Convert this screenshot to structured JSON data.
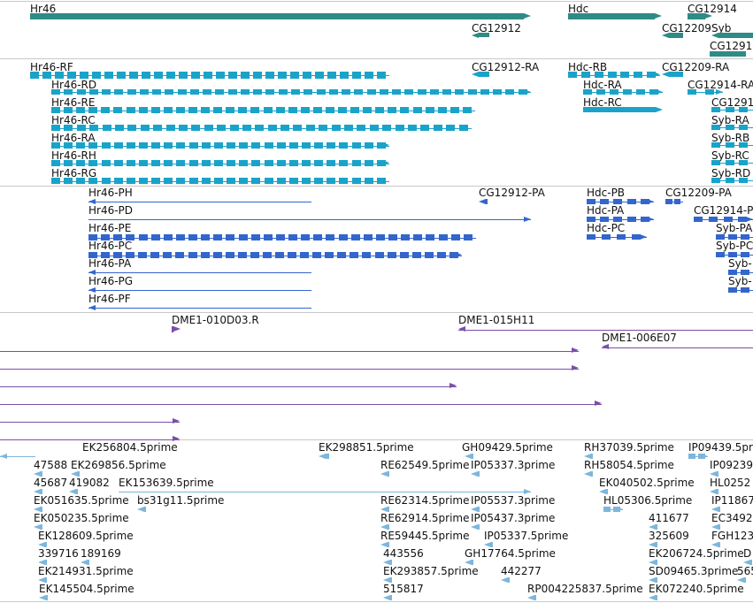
{
  "colors": {
    "gene": "#2e8b85",
    "mrna": "#1aa3c9",
    "cds": "#3366cc",
    "clone": "#7a4fa8",
    "est": "#7db6dc",
    "separator": "#c9c9c9"
  },
  "tracks": [
    {
      "id": "genes",
      "color": "gene",
      "features": [
        {
          "name": "Hr46"
        },
        {
          "name": "CG12912"
        },
        {
          "name": "Hdc"
        },
        {
          "name": "CG12914"
        },
        {
          "name": "CG12209"
        },
        {
          "name": "Syb"
        },
        {
          "name": "CG1291"
        }
      ]
    },
    {
      "id": "transcripts",
      "color": "mrna",
      "features": [
        {
          "name": "Hr46-RF"
        },
        {
          "name": "CG12912-RA"
        },
        {
          "name": "Hdc-RB"
        },
        {
          "name": "CG12209-RA"
        },
        {
          "name": "Hr46-RD"
        },
        {
          "name": "Hdc-RA"
        },
        {
          "name": "CG12914-RA"
        },
        {
          "name": "Hr46-RE"
        },
        {
          "name": "Hdc-RC"
        },
        {
          "name": "CG1291"
        },
        {
          "name": "Hr46-RC"
        },
        {
          "name": "Syb-RA"
        },
        {
          "name": "Hr46-RA"
        },
        {
          "name": "Syb-RB"
        },
        {
          "name": "Hr46-RH"
        },
        {
          "name": "Syb-RC"
        },
        {
          "name": "Hr46-RG"
        },
        {
          "name": "Syb-RD"
        }
      ]
    },
    {
      "id": "proteins",
      "color": "cds",
      "features": [
        {
          "name": "Hr46-PH"
        },
        {
          "name": "CG12912-PA"
        },
        {
          "name": "Hdc-PB"
        },
        {
          "name": "CG12209-PA"
        },
        {
          "name": "Hr46-PD"
        },
        {
          "name": "Hdc-PA"
        },
        {
          "name": "CG12914-P"
        },
        {
          "name": "Hr46-PE"
        },
        {
          "name": "Hdc-PC"
        },
        {
          "name": "Syb-PA"
        },
        {
          "name": "Hr46-PC"
        },
        {
          "name": "Syb-PC"
        },
        {
          "name": "Hr46-PA"
        },
        {
          "name": "Syb-"
        },
        {
          "name": "Hr46-PG"
        },
        {
          "name": "Syb-"
        },
        {
          "name": "Hr46-PF"
        }
      ]
    },
    {
      "id": "clones",
      "color": "clone",
      "features": [
        {
          "name": "DME1-010D03.R"
        },
        {
          "name": "DME1-015H11"
        },
        {
          "name": "DME1-006E07"
        }
      ]
    },
    {
      "id": "ests",
      "color": "est",
      "features": [
        {
          "name": "EK256804.5prime"
        },
        {
          "name": "EK298851.5prime"
        },
        {
          "name": "GH09429.5prime"
        },
        {
          "name": "RH37039.5prime"
        },
        {
          "name": "IP09439.5prime"
        },
        {
          "name": "47588"
        },
        {
          "name": "EK269856.5prime"
        },
        {
          "name": "RE62549.5prime"
        },
        {
          "name": "IP05337.3prime"
        },
        {
          "name": "RH58054.5prime"
        },
        {
          "name": "IP09239.3"
        },
        {
          "name": "45687"
        },
        {
          "name": "419082"
        },
        {
          "name": "EK153639.5prime"
        },
        {
          "name": "EK040502.5prime"
        },
        {
          "name": "HL0252"
        },
        {
          "name": "EK051635.5prime"
        },
        {
          "name": "bs31g11.5prime"
        },
        {
          "name": "RE62314.5prime"
        },
        {
          "name": "IP05537.3prime"
        },
        {
          "name": "HL05306.5prime"
        },
        {
          "name": "IP11867"
        },
        {
          "name": "EK050235.5prime"
        },
        {
          "name": "RE62914.5prime"
        },
        {
          "name": "IP05437.3prime"
        },
        {
          "name": "411677"
        },
        {
          "name": "EC3492"
        },
        {
          "name": "EK128609.5prime"
        },
        {
          "name": "RE59445.5prime"
        },
        {
          "name": "IP05337.5prime"
        },
        {
          "name": "325609"
        },
        {
          "name": "FGH123"
        },
        {
          "name": "339716"
        },
        {
          "name": "189169"
        },
        {
          "name": "443556"
        },
        {
          "name": "GH17764.5prime"
        },
        {
          "name": "EK206724.5prime"
        },
        {
          "name": "D"
        },
        {
          "name": "EK214931.5prime"
        },
        {
          "name": "EK293857.5prime"
        },
        {
          "name": "442277"
        },
        {
          "name": "SD09465.3prime"
        },
        {
          "name": "565"
        },
        {
          "name": "EK145504.5prime"
        },
        {
          "name": "515817"
        },
        {
          "name": "RP004225837.5prime"
        },
        {
          "name": "EK072240.5prime"
        }
      ]
    }
  ]
}
